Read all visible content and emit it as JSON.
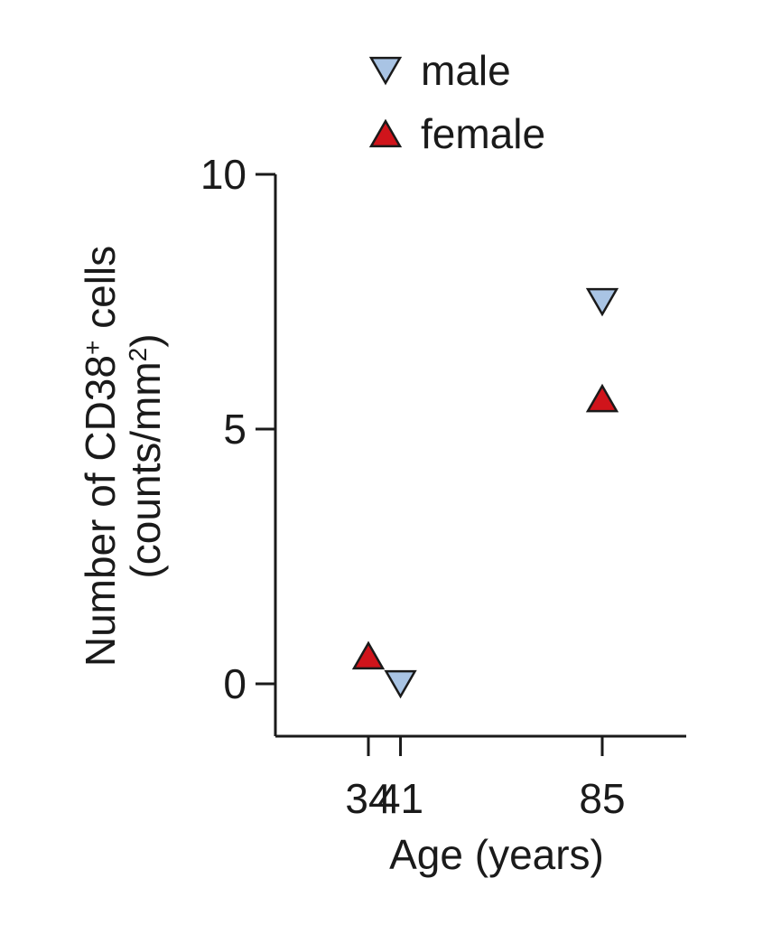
{
  "chart_data": {
    "type": "scatter",
    "xlabel": "Age (years)",
    "ylabel_line1": "Number of CD38",
    "ylabel_sup": "+",
    "ylabel_line1_end": " cells",
    "ylabel_line2": "(counts/mm",
    "ylabel_line2_sup": "2",
    "ylabel_line2_end": ")",
    "ylim": [
      0,
      10
    ],
    "yticks": [
      0,
      5,
      10
    ],
    "xticks": [
      34,
      41,
      85
    ],
    "grid": false,
    "legend_position": "top-center",
    "series": [
      {
        "name": "male",
        "marker": "triangle-down",
        "color": "#a9c4e4",
        "points": [
          {
            "x": 41,
            "y": 0
          },
          {
            "x": 85,
            "y": 7.5
          }
        ]
      },
      {
        "name": "female",
        "marker": "triangle-up",
        "color": "#d0141b",
        "points": [
          {
            "x": 34,
            "y": 0.55
          },
          {
            "x": 85,
            "y": 5.6
          }
        ]
      }
    ]
  }
}
